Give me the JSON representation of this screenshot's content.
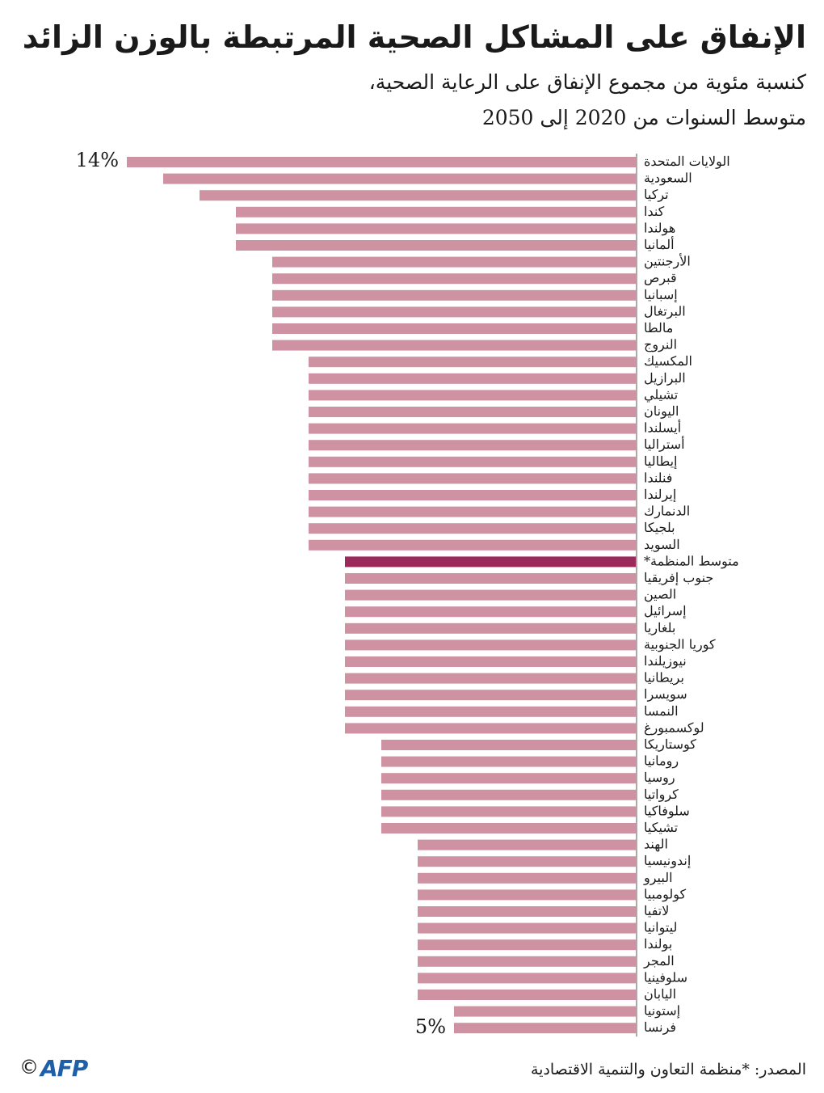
{
  "title": "الإنفاق على المشاكل الصحية المرتبطة بالوزن الزائد",
  "subtitle_line1": "كنسبة مئوية من مجموع الإنفاق على الرعاية الصحية،",
  "subtitle_line2": "متوسط السنوات من 2020 إلى 2050",
  "source": "المصدر: *منظمة التعاون والتنمية الاقتصادية",
  "copyright": "©",
  "logo": "AFP",
  "colors": {
    "bar": "#cf92a3",
    "highlight": "#9b2a5a",
    "text": "#1a1a1a"
  },
  "chart_data": {
    "type": "bar",
    "orientation": "horizontal",
    "first_value_label": "14%",
    "last_value_label": "5%",
    "categories": [
      "الولايات المتحدة",
      "السعودية",
      "تركيا",
      "كندا",
      "هولندا",
      "ألمانيا",
      "الأرجنتين",
      "قبرص",
      "إسبانيا",
      "البرتغال",
      "مالطا",
      "النروج",
      "المكسيك",
      "البرازيل",
      "تشيلي",
      "اليونان",
      "أيسلندا",
      "أستراليا",
      "إيطاليا",
      "فنلندا",
      "إيرلندا",
      "الدنمارك",
      "بلجيكا",
      "السويد",
      "متوسط المنظمة*",
      "جنوب إفريقيا",
      "الصين",
      "إسرائيل",
      "بلغاريا",
      "كوريا الجنوبية",
      "نيوزيلندا",
      "بريطانيا",
      "سويسرا",
      "النمسا",
      "لوكسمبورغ",
      "كوستاريكا",
      "رومانيا",
      "روسيا",
      "كرواتيا",
      "سلوفاكيا",
      "تشيكيا",
      "الهند",
      "إندونيسيا",
      "البيرو",
      "كولومبيا",
      "لاتفيا",
      "ليتوانيا",
      "بولندا",
      "المجر",
      "سلوفينيا",
      "اليابان",
      "إستونيا",
      "فرنسا"
    ],
    "values": [
      14,
      13,
      12,
      11,
      11,
      11,
      10,
      10,
      10,
      10,
      10,
      10,
      9,
      9,
      9,
      9,
      9,
      9,
      9,
      9,
      9,
      9,
      9,
      9,
      8,
      8,
      8,
      8,
      8,
      8,
      8,
      8,
      8,
      8,
      8,
      7,
      7,
      7,
      7,
      7,
      7,
      6,
      6,
      6,
      6,
      6,
      6,
      6,
      6,
      6,
      6,
      5,
      5
    ],
    "highlight_index": 24,
    "xlim": [
      0,
      14
    ]
  }
}
